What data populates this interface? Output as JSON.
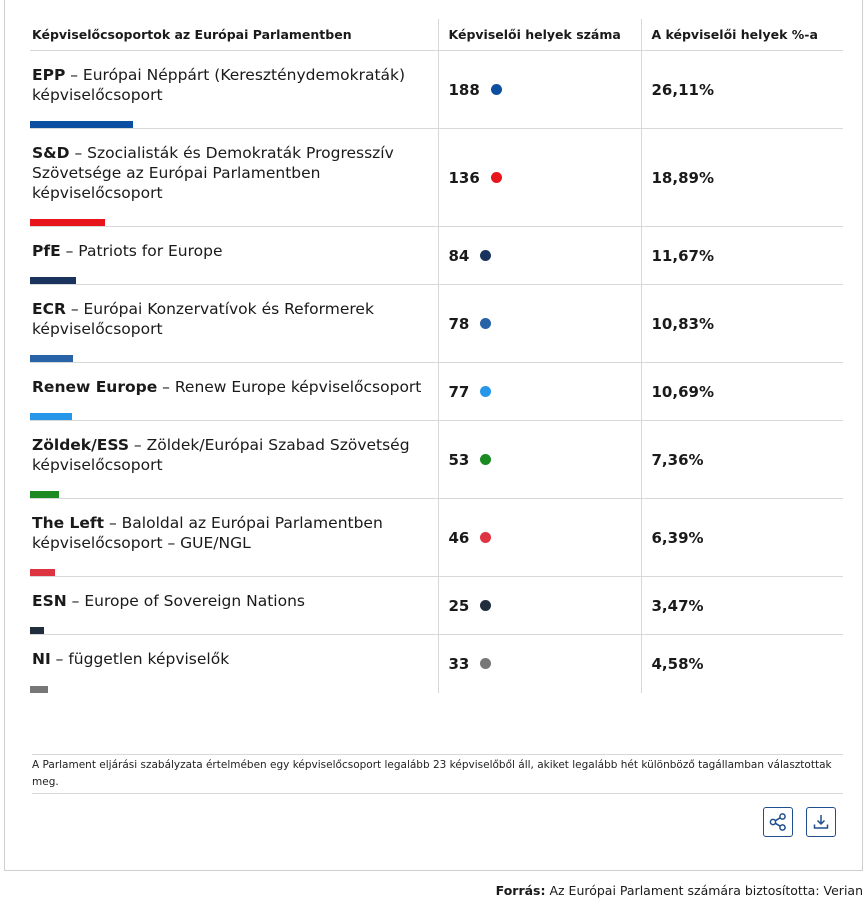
{
  "table": {
    "headers": [
      "Képviselőcsoportok az Európai Parlamentben",
      "Képviselői helyek száma",
      "A képviselői helyek %-a"
    ],
    "rows": [
      {
        "abbr": "EPP",
        "name": " – Európai Néppárt (Kereszténydemokraták) képviselőcsoport",
        "seats": "188",
        "percent": "26,11%",
        "color": "#0c4fa0",
        "seats_value": 188
      },
      {
        "abbr": "S&D",
        "name": " – Szocialisták és Demokraták Progresszív Szövetsége az Európai Parlamentben képviselőcsoport",
        "seats": "136",
        "percent": "18,89%",
        "color": "#e8141c",
        "seats_value": 136
      },
      {
        "abbr": "PfE",
        "name": " – Patriots for Europe",
        "seats": "84",
        "percent": "11,67%",
        "color": "#1a335c",
        "seats_value": 84
      },
      {
        "abbr": "ECR",
        "name": " – Európai Konzervatívok és Reformerek képviselőcsoport",
        "seats": "78",
        "percent": "10,83%",
        "color": "#2763a6",
        "seats_value": 78
      },
      {
        "abbr": "Renew Europe",
        "name": " – Renew Europe képviselőcsoport",
        "seats": "77",
        "percent": "10,69%",
        "color": "#2596e8",
        "seats_value": 77
      },
      {
        "abbr": "Zöldek/ESS",
        "name": " – Zöldek/Európai Szabad Szövetség képviselőcsoport",
        "seats": "53",
        "percent": "7,36%",
        "color": "#1b8a22",
        "seats_value": 53
      },
      {
        "abbr": "The Left",
        "name": " – Baloldal az Európai Parlamentben képviselőcsoport – GUE/NGL",
        "seats": "46",
        "percent": "6,39%",
        "color": "#de3340",
        "seats_value": 46
      },
      {
        "abbr": "ESN",
        "name": " – Europe of Sovereign Nations",
        "seats": "25",
        "percent": "3,47%",
        "color": "#1f2d3d",
        "seats_value": 25
      },
      {
        "abbr": "NI",
        "name": " – független képviselők",
        "seats": "33",
        "percent": "4,58%",
        "color": "#777777",
        "seats_value": 33
      }
    ]
  },
  "note": "A Parlament eljárási szabályzata értelmében egy képviselőcsoport legalább 23 képviselőből áll, akiket legalább hét különböző tagállamban választottak meg.",
  "actions": {
    "share_icon": "share-icon",
    "download_icon": "download-icon"
  },
  "source": {
    "label": "Forrás:",
    "text": " Az Európai Parlament számára biztosította: Verian"
  }
}
